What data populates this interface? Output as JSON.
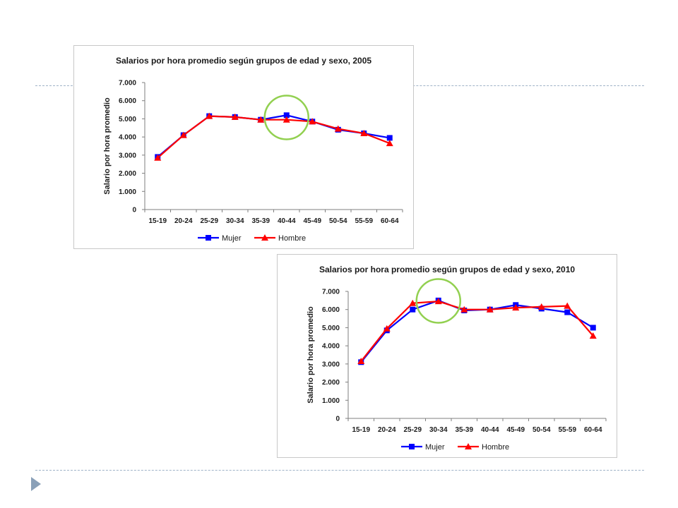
{
  "colors": {
    "mujer": "#0000ff",
    "hombre": "#ff0000",
    "highlight": "#92d050",
    "axis": "#7f7f7f"
  },
  "chart_data": [
    {
      "type": "line",
      "title": "Salarios por hora promedio según grupos de edad y sexo, 2005",
      "xlabel": "",
      "ylabel": "Salario por hora promedio",
      "categories": [
        "15-19",
        "20-24",
        "25-29",
        "30-34",
        "35-39",
        "40-44",
        "45-49",
        "50-54",
        "55-59",
        "60-64"
      ],
      "ylim": [
        0,
        7000
      ],
      "yticks": [
        0,
        1000,
        2000,
        3000,
        4000,
        5000,
        6000,
        7000
      ],
      "ytick_labels": [
        "0",
        "1.000",
        "2.000",
        "3.000",
        "4.000",
        "5.000",
        "6.000",
        "7.000"
      ],
      "grid": false,
      "legend_position": "bottom",
      "highlight_category": "40-44",
      "series": [
        {
          "name": "Mujer",
          "marker": "square",
          "values": [
            2900,
            4100,
            5150,
            5100,
            4950,
            5200,
            4850,
            4400,
            4200,
            3950
          ]
        },
        {
          "name": "Hombre",
          "marker": "triangle",
          "values": [
            2850,
            4100,
            5150,
            5100,
            4950,
            4950,
            4850,
            4450,
            4200,
            3650
          ]
        }
      ]
    },
    {
      "type": "line",
      "title": "Salarios por hora promedio según grupos de edad y sexo, 2010",
      "xlabel": "",
      "ylabel": "Salario por hora promedio",
      "categories": [
        "15-19",
        "20-24",
        "25-29",
        "30-34",
        "35-39",
        "40-44",
        "45-49",
        "50-54",
        "55-59",
        "60-64"
      ],
      "ylim": [
        0,
        7000
      ],
      "yticks": [
        0,
        1000,
        2000,
        3000,
        4000,
        5000,
        6000,
        7000
      ],
      "ytick_labels": [
        "0",
        "1.000",
        "2.000",
        "3.000",
        "4.000",
        "5.000",
        "6.000",
        "7.000"
      ],
      "grid": false,
      "legend_position": "bottom",
      "highlight_category": "30-34",
      "series": [
        {
          "name": "Mujer",
          "marker": "square",
          "values": [
            3100,
            4850,
            6000,
            6500,
            5950,
            6000,
            6250,
            6050,
            5850,
            5000
          ]
        },
        {
          "name": "Hombre",
          "marker": "triangle",
          "values": [
            3150,
            4950,
            6350,
            6450,
            6000,
            6000,
            6100,
            6150,
            6200,
            4550
          ]
        }
      ]
    }
  ]
}
